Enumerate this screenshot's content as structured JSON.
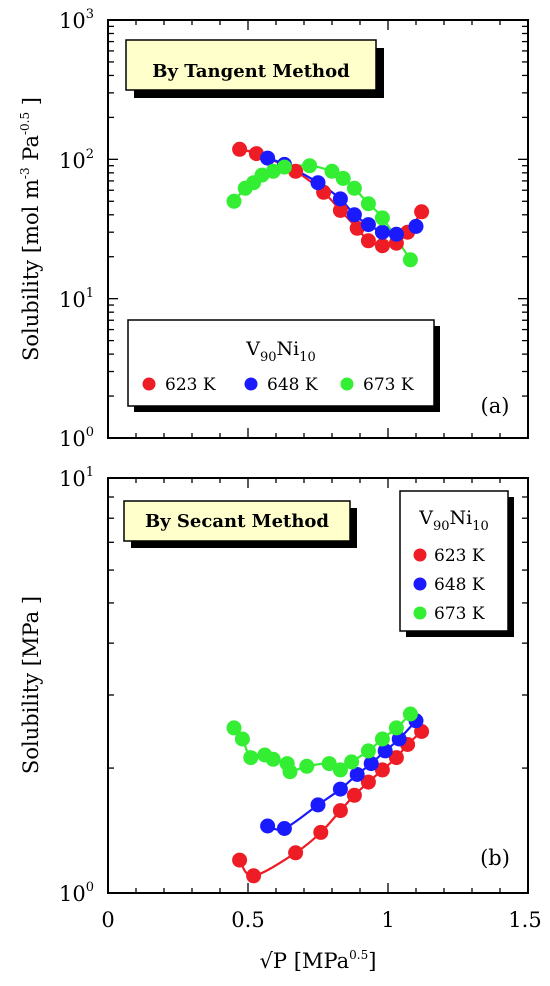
{
  "colors": {
    "623 K": "#ee1c25",
    "648 K": "#1a1aff",
    "673 K": "#33ee33"
  },
  "x_axis": {
    "title_prefix": "√P",
    "title_main": "[MPa",
    "title_sup": "0.5",
    "title_end": "]",
    "ticks": [
      "0",
      "0.5",
      "1",
      "1.5"
    ]
  },
  "chart_data": [
    {
      "type": "scatter",
      "panel_label": "(a)",
      "callout": "By Tangent Method",
      "yscale": "log",
      "xlim": [
        0,
        1.5
      ],
      "ylim": [
        1,
        1000
      ],
      "ylabel": {
        "main": "Solubility [mol m",
        "sup1": "-3",
        "mid": " Pa",
        "sup2": "-0.5",
        "end": " ]"
      },
      "ytick_labels": [
        {
          "base": "10",
          "exp": "3"
        },
        {
          "base": "10",
          "exp": "2"
        },
        {
          "base": "10",
          "exp": "1"
        },
        {
          "base": "10",
          "exp": "0"
        }
      ],
      "legend": {
        "title_base": "V",
        "title_sub1": "90",
        "title_mid": "Ni",
        "title_sub2": "10",
        "placement": "lower-center"
      },
      "series": [
        {
          "name": "623 K",
          "x": [
            0.47,
            0.53,
            0.67,
            0.77,
            0.83,
            0.89,
            0.93,
            0.98,
            1.03,
            1.07,
            1.12
          ],
          "y": [
            118,
            110,
            82,
            58,
            43,
            32,
            26,
            24,
            25,
            30,
            42
          ]
        },
        {
          "name": "648 K",
          "x": [
            0.57,
            0.63,
            0.75,
            0.83,
            0.88,
            0.93,
            0.98,
            1.03,
            1.1
          ],
          "y": [
            102,
            92,
            68,
            52,
            40,
            34,
            30,
            29,
            33
          ]
        },
        {
          "name": "673 K",
          "x": [
            0.45,
            0.49,
            0.52,
            0.55,
            0.59,
            0.63,
            0.72,
            0.8,
            0.84,
            0.88,
            0.93,
            0.98,
            1.08
          ],
          "y": [
            50,
            62,
            68,
            77,
            82,
            88,
            90,
            82,
            73,
            62,
            48,
            38,
            19
          ]
        }
      ]
    },
    {
      "type": "scatter",
      "panel_label": "(b)",
      "callout": "By Secant Method",
      "yscale": "log",
      "xlim": [
        0,
        1.5
      ],
      "ylim": [
        1,
        10
      ],
      "ylabel": {
        "main": "Solubility [MPa ]"
      },
      "ytick_labels": [
        {
          "base": "10",
          "exp": "1"
        },
        {
          "base": "10",
          "exp": "0"
        }
      ],
      "legend": {
        "title_base": "V",
        "title_sub1": "90",
        "title_mid": "Ni",
        "title_sub2": "10",
        "placement": "upper-right"
      },
      "series": [
        {
          "name": "623 K",
          "x": [
            0.47,
            0.52,
            0.67,
            0.76,
            0.83,
            0.88,
            0.93,
            0.98,
            1.03,
            1.07,
            1.12
          ],
          "y": [
            1.2,
            1.1,
            1.25,
            1.4,
            1.58,
            1.72,
            1.85,
            1.98,
            2.12,
            2.28,
            2.45
          ]
        },
        {
          "name": "648 K",
          "x": [
            0.57,
            0.63,
            0.75,
            0.83,
            0.89,
            0.94,
            0.99,
            1.04,
            1.1
          ],
          "y": [
            1.45,
            1.43,
            1.63,
            1.78,
            1.93,
            2.05,
            2.2,
            2.35,
            2.6
          ]
        },
        {
          "name": "673 K",
          "x": [
            0.45,
            0.48,
            0.51,
            0.56,
            0.59,
            0.64,
            0.65,
            0.71,
            0.79,
            0.83,
            0.87,
            0.93,
            0.98,
            1.03,
            1.08
          ],
          "y": [
            2.5,
            2.35,
            2.12,
            2.15,
            2.1,
            2.05,
            1.96,
            2.02,
            2.05,
            1.98,
            2.07,
            2.2,
            2.35,
            2.5,
            2.7
          ]
        }
      ]
    }
  ]
}
